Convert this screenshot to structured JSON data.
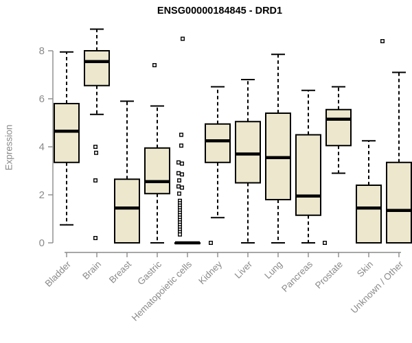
{
  "chart_data": {
    "type": "boxplot",
    "title": "ENSG00000184845 - DRD1",
    "ylabel": "Expression",
    "xlabel": "",
    "yticks": [
      0,
      2,
      4,
      6,
      8
    ],
    "ylim": [
      0,
      8.95
    ],
    "grid": false,
    "legend": null,
    "colors": {
      "box_fill": "#ECE7CD",
      "box_stroke": "#000000",
      "median": "#000000",
      "whisker": "#000000",
      "outlier_stroke": "#000000",
      "axis": "#8a8a8a",
      "tick_label": "#8a8a8a",
      "title": "#000000"
    },
    "boxes": [
      {
        "label": "Bladder",
        "whislo": 0.75,
        "q1": 3.35,
        "med": 4.65,
        "q3": 5.8,
        "whishi": 7.95,
        "outliers": []
      },
      {
        "label": "Brain",
        "whislo": 5.35,
        "q1": 6.55,
        "med": 7.55,
        "q3": 8.0,
        "whishi": 8.9,
        "outliers": [
          [
            4.0,
            -2
          ],
          [
            3.75,
            -1
          ],
          [
            2.6,
            -2
          ],
          [
            0.2,
            -2
          ]
        ]
      },
      {
        "label": "Breast",
        "whislo": 0,
        "q1": 0,
        "med": 1.45,
        "q3": 2.65,
        "whishi": 5.9,
        "outliers": []
      },
      {
        "label": "Gastric",
        "whislo": 0,
        "q1": 2.05,
        "med": 2.55,
        "q3": 3.95,
        "whishi": 5.7,
        "outliers": [
          [
            7.4,
            -4
          ]
        ]
      },
      {
        "label": "Hematopoietic cells",
        "whislo": 0,
        "q1": 0,
        "med": 0,
        "q3": 0,
        "whishi": 0,
        "outliers": [
          [
            8.5,
            -7
          ],
          [
            4.5,
            -9
          ],
          [
            4.05,
            -9
          ],
          [
            3.35,
            -13
          ],
          [
            3.3,
            -8
          ],
          [
            2.9,
            -13
          ],
          [
            2.85,
            -8
          ],
          [
            2.6,
            -12
          ],
          [
            2.35,
            -13
          ],
          [
            2.3,
            -8
          ],
          [
            2.05,
            -12
          ],
          [
            1.75,
            -11
          ],
          [
            1.65,
            -11
          ],
          [
            1.55,
            -11
          ],
          [
            1.45,
            -11
          ],
          [
            1.35,
            -11
          ],
          [
            1.25,
            -11
          ],
          [
            1.15,
            -11
          ],
          [
            1.05,
            -11
          ],
          [
            0.95,
            -11
          ],
          [
            0.85,
            -11
          ],
          [
            0.75,
            -11
          ],
          [
            0.65,
            -11
          ],
          [
            0.55,
            -11
          ],
          [
            0.45,
            -11
          ],
          [
            0.35,
            -11
          ]
        ]
      },
      {
        "label": "Kidney",
        "whislo": 1.05,
        "q1": 3.35,
        "med": 4.25,
        "q3": 4.95,
        "whishi": 6.5,
        "outliers": [
          [
            0,
            -10
          ]
        ]
      },
      {
        "label": "Liver",
        "whislo": 0,
        "q1": 2.5,
        "med": 3.7,
        "q3": 5.05,
        "whishi": 6.8,
        "outliers": []
      },
      {
        "label": "Lung",
        "whislo": 0,
        "q1": 1.8,
        "med": 3.55,
        "q3": 5.4,
        "whishi": 7.85,
        "outliers": []
      },
      {
        "label": "Pancreas",
        "whislo": 0,
        "q1": 1.15,
        "med": 1.95,
        "q3": 4.5,
        "whishi": 6.35,
        "outliers": []
      },
      {
        "label": "Prostate",
        "whislo": 2.9,
        "q1": 4.05,
        "med": 5.15,
        "q3": 5.55,
        "whishi": 6.5,
        "outliers": [
          [
            0,
            -20
          ]
        ]
      },
      {
        "label": "Skin",
        "whislo": 0,
        "q1": 0,
        "med": 1.45,
        "q3": 2.4,
        "whishi": 4.25,
        "outliers": []
      },
      {
        "label": "Unknown / Other",
        "whislo": 0,
        "q1": 0,
        "med": 1.35,
        "q3": 3.35,
        "whishi": 7.1,
        "outliers": [
          [
            8.4,
            -24
          ]
        ]
      }
    ]
  }
}
